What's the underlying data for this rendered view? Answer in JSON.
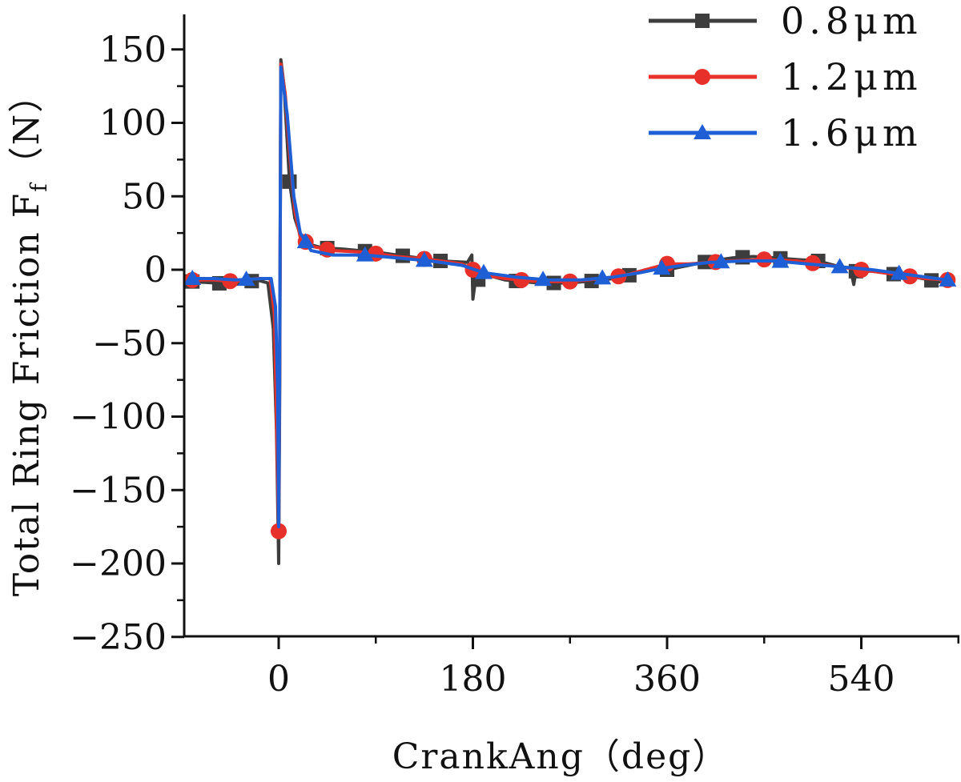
{
  "chart_data": {
    "type": "line",
    "xlabel": "CrankAng（deg）",
    "ylabel": "Total Ring Friction F",
    "ylabel_sub": "f",
    "ylabel_unit": "（N）",
    "xlim": [
      -80,
      620
    ],
    "ylim": [
      -250,
      175
    ],
    "x_ticks": [
      0,
      180,
      360,
      540
    ],
    "x_tick_labels": [
      "0",
      "180",
      "360",
      "540"
    ],
    "y_ticks": [
      150,
      100,
      50,
      0,
      -50,
      -100,
      -150,
      -200,
      -250
    ],
    "y_tick_labels": [
      "150",
      "100",
      "50",
      "0",
      "−50",
      "−100",
      "−150",
      "−200",
      "−250"
    ],
    "grid": false,
    "legend_position": "top-right",
    "series": [
      {
        "name": "0.8μm",
        "color": "#3d3d3d",
        "marker": "square",
        "points": [
          [
            -80,
            -8
          ],
          [
            -60,
            -9
          ],
          [
            -40,
            -10
          ],
          [
            -20,
            -7
          ],
          [
            -10,
            -9
          ],
          [
            -5,
            -40
          ],
          [
            -2,
            -110
          ],
          [
            0,
            -200
          ],
          [
            1,
            -80
          ],
          [
            2,
            143
          ],
          [
            5,
            125
          ],
          [
            10,
            60
          ],
          [
            15,
            35
          ],
          [
            20,
            24
          ],
          [
            30,
            17
          ],
          [
            40,
            15
          ],
          [
            60,
            14
          ],
          [
            90,
            12
          ],
          [
            120,
            9
          ],
          [
            150,
            6
          ],
          [
            175,
            5
          ],
          [
            179,
            10
          ],
          [
            180,
            -20
          ],
          [
            182,
            -9
          ],
          [
            190,
            -3
          ],
          [
            210,
            -7
          ],
          [
            240,
            -9
          ],
          [
            270,
            -9
          ],
          [
            300,
            -7
          ],
          [
            320,
            -5
          ],
          [
            340,
            0
          ],
          [
            360,
            0
          ],
          [
            380,
            3
          ],
          [
            400,
            6
          ],
          [
            420,
            8
          ],
          [
            440,
            9
          ],
          [
            460,
            8
          ],
          [
            480,
            7
          ],
          [
            500,
            6
          ],
          [
            520,
            2
          ],
          [
            530,
            1
          ],
          [
            533,
            -10
          ],
          [
            535,
            -1
          ],
          [
            550,
            -1
          ],
          [
            570,
            -3
          ],
          [
            590,
            -5
          ],
          [
            610,
            -8
          ],
          [
            620,
            -9
          ]
        ],
        "markers_x": [
          -80,
          -55,
          -25,
          10,
          45,
          80,
          115,
          150,
          185,
          220,
          255,
          290,
          325,
          360,
          395,
          430,
          465,
          500,
          535,
          570,
          605
        ]
      },
      {
        "name": "1.2μm",
        "color": "#e8302a",
        "marker": "circle",
        "points": [
          [
            -80,
            -7
          ],
          [
            -60,
            -7
          ],
          [
            -40,
            -8
          ],
          [
            -20,
            -6
          ],
          [
            -8,
            -6
          ],
          [
            -4,
            -30
          ],
          [
            -2,
            -100
          ],
          [
            0,
            -178
          ],
          [
            1,
            -60
          ],
          [
            2,
            140
          ],
          [
            6,
            120
          ],
          [
            10,
            80
          ],
          [
            15,
            40
          ],
          [
            20,
            22
          ],
          [
            30,
            16
          ],
          [
            50,
            13
          ],
          [
            80,
            12
          ],
          [
            110,
            9
          ],
          [
            140,
            7
          ],
          [
            170,
            4
          ],
          [
            180,
            0
          ],
          [
            185,
            -3
          ],
          [
            210,
            -6
          ],
          [
            240,
            -8
          ],
          [
            270,
            -8
          ],
          [
            300,
            -6
          ],
          [
            320,
            -4
          ],
          [
            345,
            1
          ],
          [
            360,
            4
          ],
          [
            380,
            4
          ],
          [
            400,
            5
          ],
          [
            420,
            6
          ],
          [
            450,
            7
          ],
          [
            480,
            6
          ],
          [
            510,
            3
          ],
          [
            540,
            0
          ],
          [
            570,
            -3
          ],
          [
            600,
            -6
          ],
          [
            620,
            -7
          ]
        ],
        "markers_x": [
          -80,
          -45,
          0,
          25,
          45,
          90,
          135,
          180,
          225,
          270,
          315,
          360,
          405,
          450,
          495,
          540,
          585,
          620
        ]
      },
      {
        "name": "1.6μm",
        "color": "#1f5fd6",
        "marker": "triangle",
        "points": [
          [
            -80,
            -6
          ],
          [
            -60,
            -6
          ],
          [
            -40,
            -7
          ],
          [
            -15,
            -6
          ],
          [
            -7,
            -6
          ],
          [
            -3,
            -25
          ],
          [
            -1,
            -80
          ],
          [
            0,
            -175
          ],
          [
            1,
            -50
          ],
          [
            2,
            138
          ],
          [
            8,
            105
          ],
          [
            14,
            50
          ],
          [
            20,
            25
          ],
          [
            30,
            13
          ],
          [
            50,
            10
          ],
          [
            80,
            10
          ],
          [
            110,
            8
          ],
          [
            140,
            6
          ],
          [
            170,
            3
          ],
          [
            190,
            -2
          ],
          [
            220,
            -5
          ],
          [
            250,
            -7
          ],
          [
            280,
            -7
          ],
          [
            310,
            -5
          ],
          [
            335,
            -2
          ],
          [
            355,
            1
          ],
          [
            375,
            3
          ],
          [
            400,
            5
          ],
          [
            430,
            6
          ],
          [
            460,
            6
          ],
          [
            490,
            4
          ],
          [
            520,
            2
          ],
          [
            550,
            0
          ],
          [
            580,
            -3
          ],
          [
            610,
            -6
          ],
          [
            620,
            -7
          ]
        ],
        "markers_x": [
          -80,
          -30,
          25,
          80,
          135,
          190,
          245,
          300,
          355,
          410,
          465,
          520,
          575,
          620
        ]
      }
    ]
  }
}
